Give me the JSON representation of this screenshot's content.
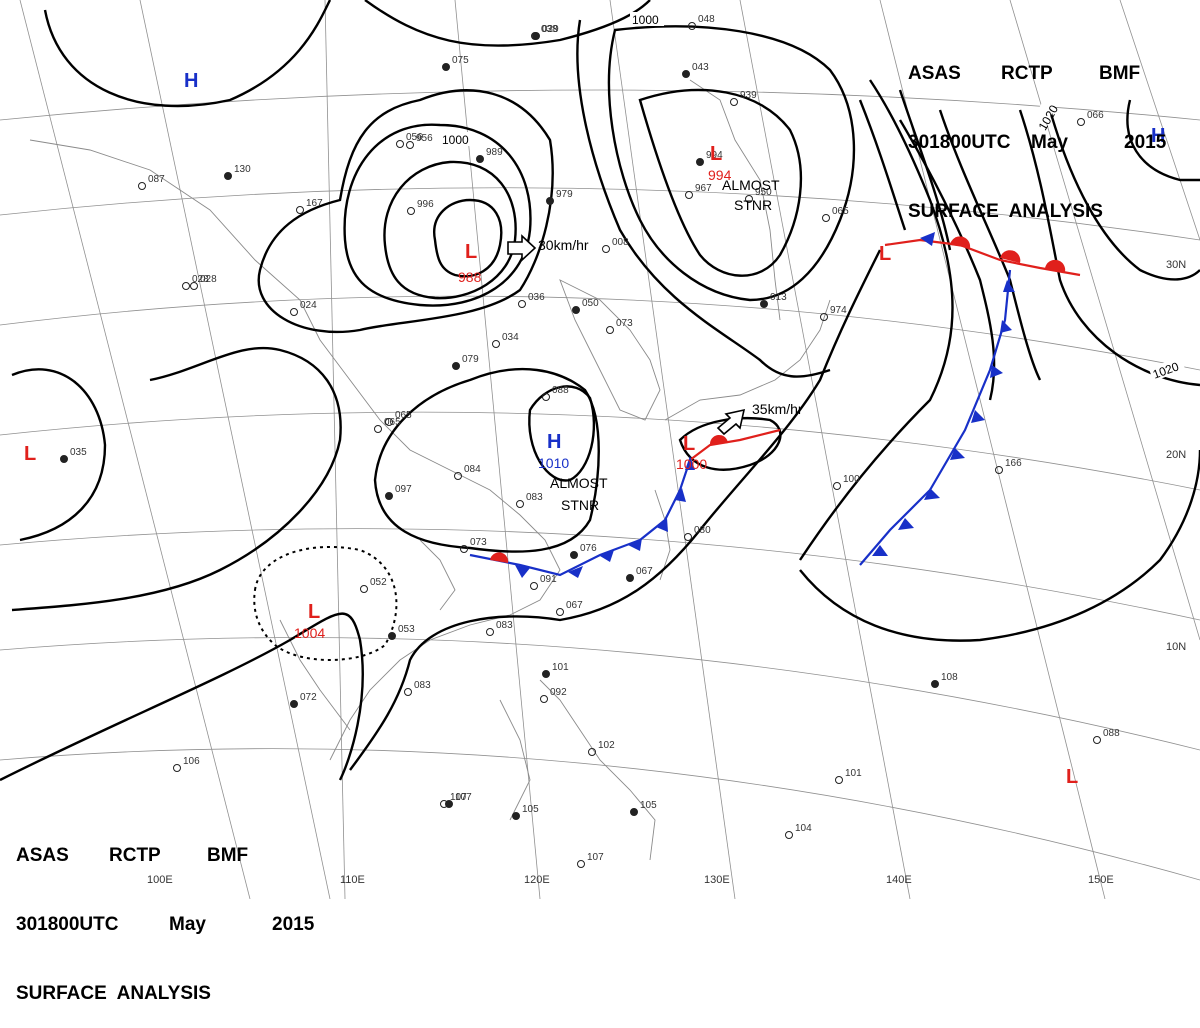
{
  "header": {
    "line1": [
      "ASAS",
      "RCTP",
      "BMF"
    ],
    "line2": [
      "301800UTC",
      "May",
      "2015"
    ],
    "line3": "SURFACE  ANALYSIS"
  },
  "longitude_labels": [
    "100E",
    "110E",
    "120E",
    "130E",
    "140E",
    "150E"
  ],
  "latitude_labels": [
    "30N",
    "20N",
    "10N"
  ],
  "isobar_labels": [
    "1000",
    "1000",
    "1020",
    "1020"
  ],
  "pressure_centers": [
    {
      "type": "L",
      "pressure": "988",
      "color": "#e0201c"
    },
    {
      "type": "L",
      "pressure": "994",
      "color": "#e0201c"
    },
    {
      "type": "L",
      "pressure": "1000",
      "color": "#e0201c"
    },
    {
      "type": "L",
      "pressure": "1004",
      "color": "#e0201c"
    },
    {
      "type": "H",
      "pressure": "1010",
      "color": "#1830c8"
    },
    {
      "type": "L",
      "pressure": "",
      "color": "#e0201c"
    },
    {
      "type": "L",
      "pressure": "",
      "color": "#e0201c"
    },
    {
      "type": "L",
      "pressure": "",
      "color": "#e0201c"
    },
    {
      "type": "H",
      "pressure": "",
      "color": "#1830c8"
    },
    {
      "type": "H",
      "pressure": "",
      "color": "#1830c8"
    }
  ],
  "motion_notes": [
    "30km/hr",
    "35km/hr"
  ],
  "stationary_notes": [
    "ALMOST",
    "STNR",
    "ALMOST",
    "STNR"
  ],
  "station_values": [
    "035",
    "028",
    "024",
    "079",
    "065",
    "084",
    "097",
    "083",
    "073",
    "076",
    "091",
    "067",
    "053",
    "052",
    "083",
    "072",
    "083",
    "106",
    "101",
    "092",
    "107",
    "105",
    "107",
    "102",
    "105",
    "100",
    "080",
    "067",
    "073",
    "065",
    "050",
    "034",
    "036",
    "979",
    "008",
    "974",
    "013",
    "065",
    "950",
    "994",
    "967",
    "939",
    "989",
    "956",
    "996",
    "029",
    "028",
    "167",
    "130",
    "087",
    "056",
    "075",
    "038",
    "048",
    "043",
    "088",
    "166",
    "107",
    "101",
    "104",
    "108",
    "088",
    "066"
  ]
}
